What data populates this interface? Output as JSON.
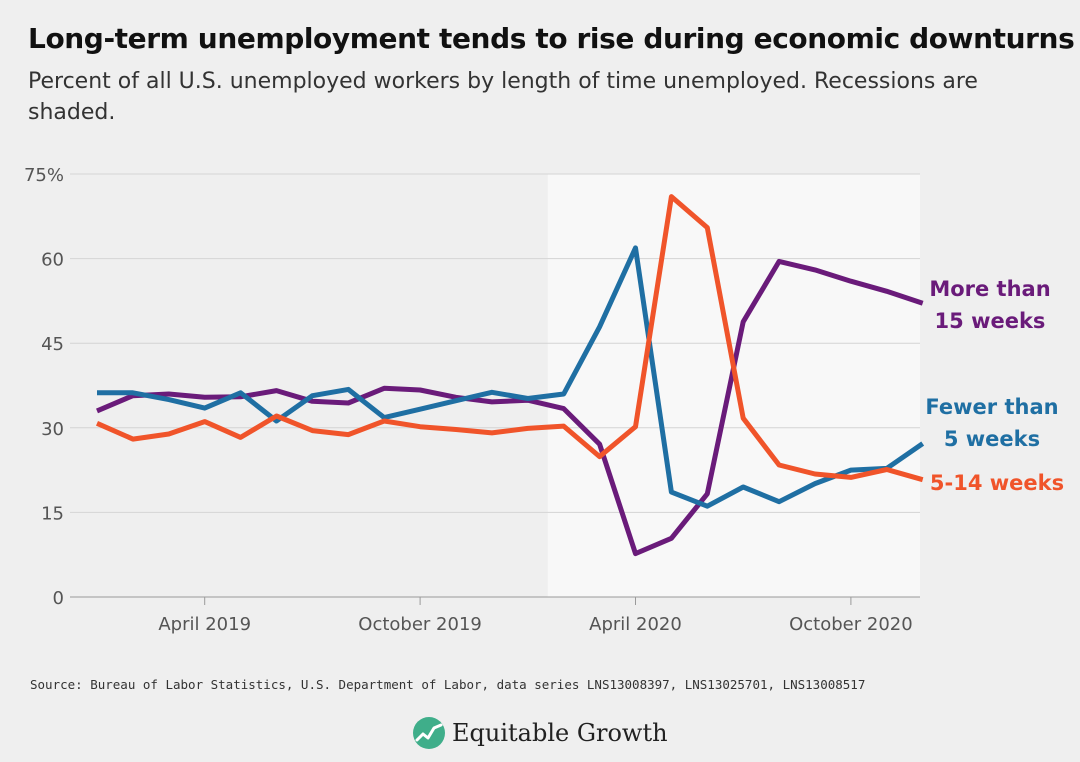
{
  "header": {
    "title": "Long-term unemployment tends to rise during economic downturns",
    "subtitle": "Percent of all U.S. unemployed workers by length of time unemployed. Recessions are shaded."
  },
  "footer": {
    "source": "Source: Bureau of Labor Statistics, U.S. Department of Labor, data series LNS13008397, LNS13025701, LNS13008517",
    "logo_text": "Equitable Growth"
  },
  "colors": {
    "background": "#efefef",
    "recession_shade": "#f8f8f8",
    "more_than_15": "#6a1b7a",
    "fewer_than_5": "#1f6fa3",
    "five_to_14": "#f0542a",
    "logo_green": "#3fae8a"
  },
  "chart_data": {
    "type": "line",
    "title": "Long-term unemployment tends to rise during economic downturns",
    "subtitle": "Percent of all U.S. unemployed workers by length of time unemployed. Recessions are shaded.",
    "x": [
      "2019-01",
      "2019-02",
      "2019-03",
      "2019-04",
      "2019-05",
      "2019-06",
      "2019-07",
      "2019-08",
      "2019-09",
      "2019-10",
      "2019-11",
      "2019-12",
      "2020-01",
      "2020-02",
      "2020-03",
      "2020-04",
      "2020-05",
      "2020-06",
      "2020-07",
      "2020-08",
      "2020-09",
      "2020-10",
      "2020-11",
      "2020-12"
    ],
    "x_ticks": [
      {
        "x": "2019-04",
        "label": "April 2019"
      },
      {
        "x": "2019-10",
        "label": "October 2019"
      },
      {
        "x": "2020-04",
        "label": "April 2020"
      },
      {
        "x": "2020-10",
        "label": "October 2020"
      }
    ],
    "y_ticks": [
      {
        "value": 0,
        "label": "0"
      },
      {
        "value": 15,
        "label": "15"
      },
      {
        "value": 30,
        "label": "30"
      },
      {
        "value": 45,
        "label": "45"
      },
      {
        "value": 60,
        "label": "60"
      },
      {
        "value": 75,
        "label": "75%"
      }
    ],
    "ylim": [
      0,
      75
    ],
    "grid": true,
    "recessions": [
      {
        "start": "2020-02",
        "end": "2020-12"
      }
    ],
    "series": [
      {
        "name": "More than 15 weeks",
        "label_lines": [
          "More than",
          "15 weeks"
        ],
        "color": "#6a1b7a",
        "values": [
          33.0,
          35.7,
          36.0,
          35.4,
          35.5,
          36.6,
          34.7,
          34.4,
          37.0,
          36.7,
          35.4,
          34.6,
          34.9,
          33.4,
          27.1,
          7.7,
          10.4,
          18.3,
          48.8,
          59.5,
          58.0,
          56.0,
          54.2,
          52.1
        ]
      },
      {
        "name": "Fewer than 5 weeks",
        "label_lines": [
          "Fewer than",
          "5 weeks"
        ],
        "color": "#1f6fa3",
        "values": [
          36.2,
          36.2,
          35.0,
          33.5,
          36.2,
          31.2,
          35.7,
          36.8,
          31.8,
          33.3,
          34.8,
          36.3,
          35.2,
          36.0,
          47.9,
          61.9,
          18.6,
          16.1,
          19.5,
          16.9,
          20.1,
          22.5,
          22.8,
          27.2
        ]
      },
      {
        "name": "5-14 weeks",
        "label_lines": [
          "5-14 weeks"
        ],
        "color": "#f0542a",
        "values": [
          30.8,
          28.0,
          28.9,
          31.1,
          28.3,
          32.1,
          29.5,
          28.8,
          31.2,
          30.2,
          29.7,
          29.1,
          29.9,
          30.3,
          24.9,
          30.2,
          71.0,
          65.5,
          31.7,
          23.4,
          21.8,
          21.2,
          22.6,
          20.8
        ]
      }
    ]
  }
}
